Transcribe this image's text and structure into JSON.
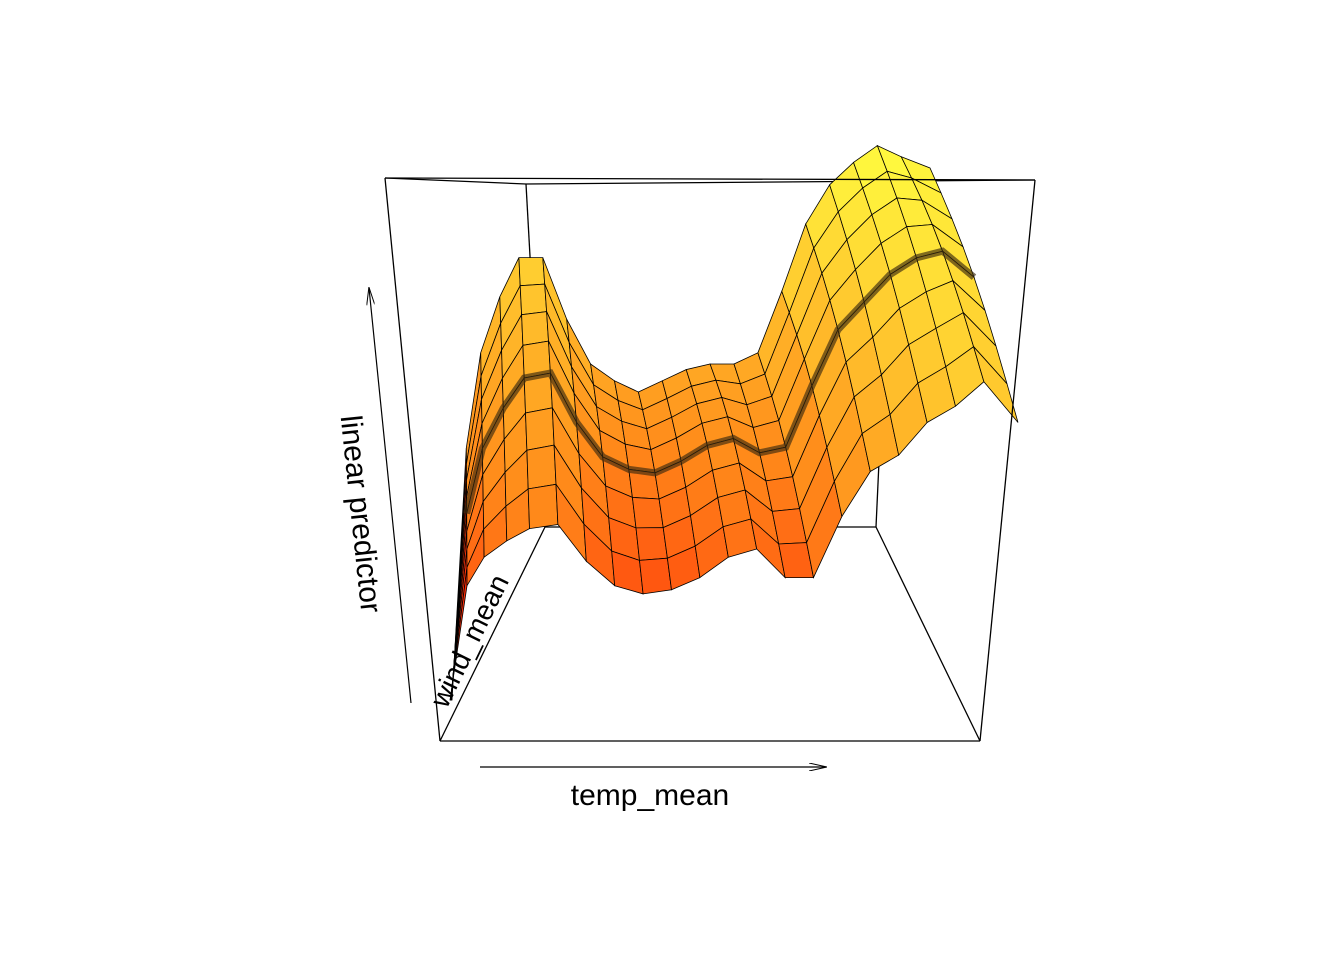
{
  "chart_data": {
    "type": "surface",
    "title": "",
    "xlabel": "temp_mean",
    "ylabel": "linear predictor",
    "depth_label": "wind_mean",
    "grid": false,
    "colors": {
      "low": "#ff0000",
      "mid": "#ff8a1a",
      "high": "#ffff40",
      "mesh": "#000000"
    },
    "surface_profile": {
      "x": [
        0.0,
        0.03,
        0.06,
        0.1,
        0.14,
        0.19,
        0.24,
        0.29,
        0.34,
        0.39,
        0.44,
        0.49,
        0.54,
        0.59,
        0.64,
        0.69,
        0.74,
        0.79,
        0.84,
        0.89,
        0.94,
        1.0
      ],
      "front_edge": [
        0.0,
        0.28,
        0.35,
        0.39,
        0.42,
        0.43,
        0.34,
        0.28,
        0.26,
        0.27,
        0.3,
        0.35,
        0.37,
        0.3,
        0.3,
        0.45,
        0.56,
        0.6,
        0.68,
        0.72,
        0.78,
        0.68
      ],
      "back_edge": [
        0.0,
        0.45,
        0.62,
        0.72,
        0.79,
        0.79,
        0.68,
        0.6,
        0.57,
        0.55,
        0.57,
        0.59,
        0.6,
        0.6,
        0.62,
        0.73,
        0.85,
        0.92,
        0.96,
        0.99,
        0.97,
        0.95
      ]
    }
  }
}
